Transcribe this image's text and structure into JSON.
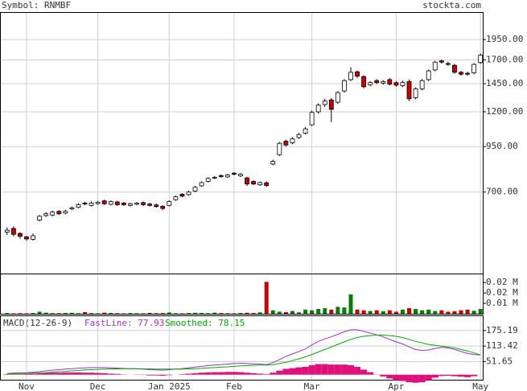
{
  "header": {
    "symbol": "Symbol: RNMBF",
    "site": "stockta.com"
  },
  "chart_data": [
    {
      "type": "candlestick",
      "log": true,
      "grid": true,
      "up_color": "#ffffff",
      "down_color": "#cc0000",
      "ylim": [
        405,
        2345
      ],
      "yticks": [
        {
          "value": 700,
          "label": "700.00"
        },
        {
          "value": 950,
          "label": "950.00"
        },
        {
          "value": 1200,
          "label": "1200.00"
        },
        {
          "value": 1450,
          "label": "1450.00"
        },
        {
          "value": 1700,
          "label": "1700.00"
        },
        {
          "value": 1950,
          "label": "1950.00"
        }
      ],
      "open": [
        535,
        548,
        530,
        518,
        510,
        580,
        598,
        600,
        615,
        608,
        625,
        632,
        650,
        640,
        648,
        660,
        645,
        655,
        650,
        640,
        645,
        652,
        646,
        642,
        636,
        640,
        665,
        690,
        688,
        705,
        730,
        752,
        770,
        782,
        775,
        795,
        780,
        770,
        752,
        735,
        745,
        845,
        900,
        985,
        975,
        1010,
        1040,
        1100,
        1200,
        1260,
        1300,
        1280,
        1380,
        1490,
        1570,
        1520,
        1440,
        1480,
        1455,
        1490,
        1460,
        1430,
        1470,
        1320,
        1400,
        1490,
        1590,
        1690,
        1660,
        1640,
        1565,
        1555,
        1560,
        1670
      ],
      "high": [
        552,
        556,
        535,
        522,
        530,
        600,
        612,
        618,
        620,
        622,
        636,
        650,
        656,
        658,
        660,
        665,
        662,
        660,
        655,
        652,
        655,
        657,
        651,
        648,
        642,
        662,
        684,
        695,
        706,
        730,
        752,
        773,
        780,
        788,
        792,
        800,
        795,
        775,
        757,
        752,
        752,
        870,
        980,
        995,
        1012,
        1042,
        1085,
        1210,
        1270,
        1310,
        1315,
        1380,
        1495,
        1620,
        1585,
        1535,
        1475,
        1495,
        1485,
        1505,
        1475,
        1480,
        1490,
        1415,
        1495,
        1595,
        1690,
        1705,
        1680,
        1655,
        1580,
        1570,
        1665,
        1775
      ],
      "low": [
        525,
        520,
        512,
        505,
        505,
        575,
        592,
        595,
        600,
        603,
        620,
        628,
        640,
        635,
        642,
        642,
        640,
        638,
        638,
        635,
        640,
        638,
        635,
        630,
        620,
        636,
        660,
        676,
        683,
        700,
        725,
        747,
        764,
        771,
        770,
        783,
        775,
        730,
        733,
        730,
        725,
        838,
        892,
        950,
        965,
        1000,
        1030,
        1090,
        1185,
        1240,
        1120,
        1265,
        1365,
        1475,
        1505,
        1405,
        1425,
        1445,
        1440,
        1430,
        1420,
        1415,
        1290,
        1305,
        1385,
        1475,
        1575,
        1660,
        1635,
        1550,
        1530,
        1530,
        1545,
        1655
      ],
      "close": [
        542,
        527,
        520,
        511,
        522,
        595,
        605,
        612,
        605,
        615,
        630,
        643,
        647,
        650,
        654,
        647,
        657,
        643,
        643,
        647,
        650,
        643,
        640,
        635,
        627,
        657,
        678,
        681,
        700,
        723,
        746,
        767,
        773,
        777,
        785,
        789,
        789,
        739,
        739,
        746,
        731,
        860,
        971,
        960,
        1000,
        1030,
        1070,
        1195,
        1255,
        1290,
        1220,
        1365,
        1480,
        1565,
        1525,
        1420,
        1460,
        1460,
        1470,
        1445,
        1435,
        1460,
        1310,
        1400,
        1480,
        1580,
        1675,
        1675,
        1650,
        1565,
        1545,
        1545,
        1650,
        1755
      ]
    },
    {
      "type": "bar",
      "up_color": "#008000",
      "down_color": "#cc0000",
      "ylim": [
        0,
        29000
      ],
      "yticks": [
        {
          "value": 7500,
          "label": "0.01 M"
        },
        {
          "value": 15000,
          "label": "0.02 M"
        },
        {
          "value": 22500,
          "label": "0.02 M"
        }
      ],
      "values": [
        500,
        300,
        400,
        300,
        600,
        1500,
        800,
        500,
        400,
        600,
        700,
        400,
        1200,
        500,
        300,
        800,
        600,
        400,
        300,
        500,
        400,
        300,
        600,
        400,
        500,
        900,
        400,
        300,
        500,
        700,
        600,
        400,
        800,
        500,
        400,
        300,
        600,
        700,
        500,
        1000,
        23000,
        2500,
        1500,
        1200,
        2000,
        1000,
        3000,
        2500,
        3500,
        4000,
        3000,
        5000,
        4500,
        14000,
        3000,
        2500,
        2000,
        2500,
        1800,
        2500,
        1500,
        3000,
        4000,
        3500,
        2500,
        3000,
        2000,
        2500,
        1500,
        1800,
        2500,
        3000,
        2200,
        3500
      ]
    },
    {
      "type": "macd",
      "title": "MACD(12-26-9)",
      "ylim": [
        -20,
        235
      ],
      "yticks": [
        51.65,
        113.42,
        175.19
      ],
      "categories": [
        null,
        null,
        null,
        "Nov",
        null,
        null,
        null,
        null,
        null,
        null,
        null,
        null,
        null,
        null,
        "Dec",
        null,
        null,
        null,
        null,
        null,
        null,
        null,
        null,
        null,
        null,
        "Jan 2025",
        null,
        null,
        null,
        null,
        null,
        null,
        null,
        null,
        null,
        "Feb",
        null,
        null,
        null,
        null,
        null,
        null,
        null,
        null,
        null,
        null,
        null,
        "Mar",
        null,
        null,
        null,
        null,
        null,
        null,
        null,
        null,
        null,
        null,
        null,
        null,
        "Apr",
        null,
        null,
        null,
        null,
        null,
        null,
        null,
        null,
        null,
        null,
        null,
        null,
        "May"
      ],
      "series": [
        {
          "name": "FastLine: 77.93",
          "color": "#9933cc",
          "values": [
            5,
            6,
            7,
            8,
            10,
            12,
            15,
            18,
            20,
            22,
            24,
            26,
            27,
            28,
            28,
            28,
            27,
            26,
            25,
            24,
            23,
            22,
            20,
            19,
            18,
            20,
            22,
            24,
            27,
            30,
            33,
            36,
            38,
            40,
            42,
            44,
            45,
            44,
            43,
            42,
            40,
            48,
            60,
            72,
            82,
            92,
            102,
            118,
            132,
            142,
            150,
            160,
            170,
            178,
            178,
            172,
            165,
            158,
            150,
            140,
            130,
            122,
            110,
            100,
            96,
            98,
            104,
            108,
            106,
            100,
            92,
            84,
            80,
            77.93
          ]
        },
        {
          "name": "Smoothed: 78.15",
          "color": "#00aa00",
          "values": [
            3,
            4,
            5,
            5,
            6,
            7,
            8,
            10,
            12,
            13,
            15,
            17,
            19,
            20,
            21,
            22,
            23,
            23,
            24,
            24,
            24,
            23,
            23,
            22,
            22,
            22,
            22,
            22,
            23,
            24,
            25,
            27,
            28,
            30,
            31,
            33,
            35,
            36,
            37,
            38,
            38,
            40,
            44,
            49,
            56,
            63,
            71,
            80,
            90,
            100,
            110,
            120,
            130,
            140,
            147,
            152,
            155,
            157,
            157,
            155,
            152,
            147,
            140,
            132,
            126,
            120,
            116,
            113,
            110,
            106,
            100,
            94,
            86,
            78.15
          ]
        }
      ],
      "histogram": {
        "color": "#e0107a",
        "values": [
          2,
          2,
          2,
          3,
          4,
          5,
          7,
          8,
          8,
          9,
          9,
          9,
          8,
          8,
          7,
          6,
          4,
          3,
          1,
          0,
          -1,
          -1,
          -3,
          -3,
          -4,
          -2,
          0,
          2,
          4,
          6,
          8,
          9,
          10,
          10,
          11,
          11,
          10,
          8,
          6,
          4,
          2,
          8,
          16,
          23,
          26,
          29,
          31,
          38,
          42,
          42,
          40,
          40,
          40,
          38,
          31,
          20,
          10,
          1,
          -7,
          -15,
          -22,
          -25,
          -30,
          -32,
          -30,
          -22,
          -12,
          -5,
          -4,
          -6,
          -8,
          -10,
          -6,
          -0.22
        ]
      }
    }
  ]
}
